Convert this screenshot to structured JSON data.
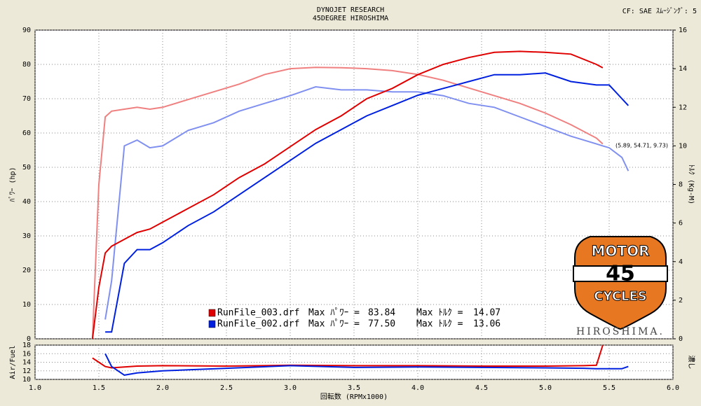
{
  "header": {
    "title": "DYNOJET  RESEARCH",
    "subtitle": "45DEGREE HIROSHIMA",
    "settings": "CF: SAE  ｽﾑｰｼﾞﾝｸﾞ: 5"
  },
  "logo": {
    "top": "MOTOR",
    "center": "45",
    "bottom": "CYCLES",
    "brand": "HIROSHIMA."
  },
  "chart_data": [
    {
      "type": "line",
      "ylabel": "ﾊﾟﾜｰ (hp)",
      "y2label": "ﾄﾙｸ (Kg-M)",
      "grid": true,
      "annotation": "(5.89, 54.71, 9.73)",
      "xlim": [
        1,
        6
      ],
      "xticks": [
        1,
        1.5,
        2,
        2.5,
        3,
        3.5,
        4,
        4.5,
        5,
        5.5,
        6
      ],
      "ylim": [
        0,
        90
      ],
      "yticks": [
        0,
        10,
        20,
        30,
        40,
        50,
        60,
        70,
        80,
        90
      ],
      "y2lim": [
        0,
        16
      ],
      "y2ticks": [
        0,
        2,
        4,
        6,
        8,
        10,
        12,
        14,
        16
      ],
      "legend_power_label": "Max ﾊﾟﾜｰ =",
      "legend_torque_label": "Max ﾄﾙｸ =",
      "legend": [
        {
          "file": "RunFile_003.drf",
          "max_power": 83.84,
          "max_torque": 14.07,
          "color": "#e00000"
        },
        {
          "file": "RunFile_002.drf",
          "max_power": {
            "value": 77.5,
            "label": "77.50"
          },
          "max_torque": 13.06,
          "color": "#0020e0"
        }
      ],
      "x": [
        1.45,
        1.5,
        1.55,
        1.6,
        1.7,
        1.8,
        1.9,
        2.0,
        2.2,
        2.4,
        2.6,
        2.8,
        3.0,
        3.2,
        3.4,
        3.6,
        3.8,
        4.0,
        4.2,
        4.4,
        4.6,
        4.8,
        5.0,
        5.2,
        5.4,
        5.45,
        5.5,
        5.6,
        5.65
      ],
      "series": [
        {
          "color": "#f08080",
          "axis": "y2",
          "values": [
            0,
            8,
            11.5,
            11.8,
            11.9,
            12,
            11.9,
            12,
            12.4,
            12.8,
            13.2,
            13.7,
            14,
            14.07,
            14.05,
            14,
            13.9,
            13.7,
            13.4,
            13,
            12.6,
            12.2,
            11.7,
            11.1,
            10.4,
            10.1,
            null,
            null,
            null
          ]
        },
        {
          "color": "#8090f0",
          "axis": "y2",
          "values": [
            null,
            null,
            1,
            3,
            10,
            10.3,
            9.9,
            10,
            10.8,
            11.2,
            11.8,
            12.2,
            12.6,
            13.06,
            12.9,
            12.9,
            12.8,
            12.8,
            12.6,
            12.2,
            12,
            11.5,
            11,
            10.5,
            10.1,
            10,
            9.9,
            9.4,
            8.7
          ]
        },
        {
          "color": "#e00000",
          "values": [
            0,
            15,
            25,
            27,
            29,
            31,
            32,
            34,
            38,
            42,
            47,
            51,
            56,
            61,
            65,
            70,
            73,
            77,
            80,
            82,
            83.5,
            83.8,
            83.5,
            83,
            80,
            79,
            null,
            null,
            null
          ]
        },
        {
          "color": "#0020e0",
          "values": [
            null,
            null,
            2,
            2,
            22,
            26,
            26,
            28,
            33,
            37,
            42,
            47,
            52,
            57,
            61,
            65,
            68,
            71,
            73,
            75,
            77,
            77,
            77.5,
            75,
            74,
            74,
            74,
            70,
            68
          ]
        }
      ]
    },
    {
      "type": "line",
      "ylabel": "Air/Fuel",
      "y2label": "濃し",
      "xlabel": "回転数 (RPMx1000)",
      "grid": true,
      "xlim": [
        1,
        6
      ],
      "xticks": [
        {
          "value": 1,
          "label": "1.0"
        },
        {
          "value": 1.5,
          "label": "1.5"
        },
        {
          "value": 2,
          "label": "2.0"
        },
        {
          "value": 2.5,
          "label": "2.5"
        },
        {
          "value": 3,
          "label": "3.0"
        },
        {
          "value": 3.5,
          "label": "3.5"
        },
        {
          "value": 4,
          "label": "4.0"
        },
        {
          "value": 4.5,
          "label": "4.5"
        },
        {
          "value": 5,
          "label": "5.0"
        },
        {
          "value": 5.5,
          "label": "5.5"
        },
        {
          "value": 6,
          "label": "6.0"
        }
      ],
      "ylim": [
        10,
        18
      ],
      "yticks": [
        10,
        12,
        14,
        16,
        18
      ],
      "x": [
        1.45,
        1.5,
        1.55,
        1.6,
        1.7,
        1.8,
        2.0,
        2.5,
        3.0,
        3.5,
        4.0,
        4.5,
        5.0,
        5.3,
        5.4,
        5.45,
        5.5,
        5.6,
        5.65
      ],
      "series": [
        {
          "color": "#e00000",
          "values": [
            15,
            14,
            13,
            12.7,
            12.9,
            13.1,
            13.2,
            13.1,
            13.3,
            13.2,
            13.2,
            13.1,
            13.1,
            13.2,
            13.3,
            18,
            null,
            null,
            null
          ]
        },
        {
          "color": "#0020e0",
          "values": [
            null,
            null,
            16,
            13,
            11,
            11.5,
            12,
            12.6,
            13.2,
            12.8,
            12.9,
            12.8,
            12.7,
            12.6,
            12.5,
            12.5,
            12.5,
            12.5,
            13
          ]
        }
      ]
    }
  ]
}
